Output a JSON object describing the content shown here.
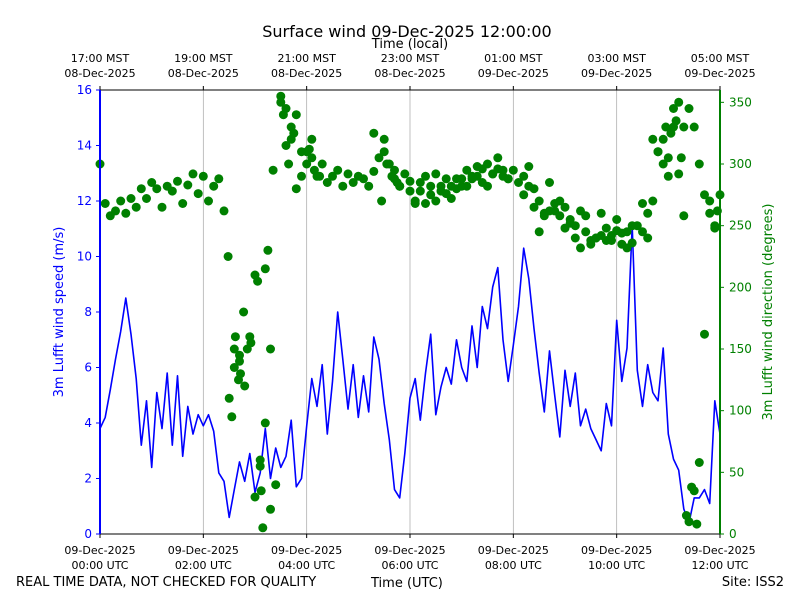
{
  "chart_data": {
    "type": "line",
    "title": "Surface wind 09-Dec-2025 12:00:00",
    "top_axis_label": "Time (local)",
    "xlabel": "Time (UTC)",
    "ylabel_left": "3m Lufft wind speed (m/s)",
    "ylabel_right": "3m Lufft wind direction (degrees)",
    "x_range_hours": [
      0,
      12
    ],
    "ylim_left": [
      0,
      16
    ],
    "ylim_right": [
      0,
      360
    ],
    "left_ticks": [
      0,
      2,
      4,
      6,
      8,
      10,
      12,
      14,
      16
    ],
    "right_ticks": [
      0,
      50,
      100,
      150,
      200,
      250,
      300,
      350
    ],
    "bottom_ticks": [
      {
        "h": 0,
        "line1": "09-Dec-2025",
        "line2": "00:00 UTC"
      },
      {
        "h": 2,
        "line1": "09-Dec-2025",
        "line2": "02:00 UTC"
      },
      {
        "h": 4,
        "line1": "09-Dec-2025",
        "line2": "04:00 UTC"
      },
      {
        "h": 6,
        "line1": "09-Dec-2025",
        "line2": "06:00 UTC"
      },
      {
        "h": 8,
        "line1": "09-Dec-2025",
        "line2": "08:00 UTC"
      },
      {
        "h": 10,
        "line1": "09-Dec-2025",
        "line2": "10:00 UTC"
      },
      {
        "h": 12,
        "line1": "09-Dec-2025",
        "line2": "12:00 UTC"
      }
    ],
    "top_ticks": [
      {
        "h": 0,
        "line1": "17:00 MST",
        "line2": "08-Dec-2025"
      },
      {
        "h": 2,
        "line1": "19:00 MST",
        "line2": "08-Dec-2025"
      },
      {
        "h": 4,
        "line1": "21:00 MST",
        "line2": "08-Dec-2025"
      },
      {
        "h": 6,
        "line1": "23:00 MST",
        "line2": "08-Dec-2025"
      },
      {
        "h": 8,
        "line1": "01:00 MST",
        "line2": "09-Dec-2025"
      },
      {
        "h": 10,
        "line1": "03:00 MST",
        "line2": "09-Dec-2025"
      },
      {
        "h": 12,
        "line1": "05:00 MST",
        "line2": "09-Dec-2025"
      }
    ],
    "grid": "vertical",
    "series": [
      {
        "name": "3m Lufft wind speed",
        "axis": "left",
        "style": "line",
        "color": "#0000ff",
        "x_hours": [
          0.0,
          0.1,
          0.2,
          0.3,
          0.4,
          0.5,
          0.6,
          0.7,
          0.8,
          0.9,
          1.0,
          1.1,
          1.2,
          1.3,
          1.4,
          1.5,
          1.6,
          1.7,
          1.8,
          1.9,
          2.0,
          2.1,
          2.2,
          2.3,
          2.4,
          2.5,
          2.6,
          2.7,
          2.8,
          2.9,
          3.0,
          3.1,
          3.2,
          3.3,
          3.4,
          3.5,
          3.6,
          3.7,
          3.8,
          3.9,
          4.0,
          4.1,
          4.2,
          4.3,
          4.4,
          4.5,
          4.6,
          4.7,
          4.8,
          4.9,
          5.0,
          5.1,
          5.2,
          5.3,
          5.4,
          5.5,
          5.6,
          5.7,
          5.8,
          5.9,
          6.0,
          6.1,
          6.2,
          6.3,
          6.4,
          6.5,
          6.6,
          6.7,
          6.8,
          6.9,
          7.0,
          7.1,
          7.2,
          7.3,
          7.4,
          7.5,
          7.6,
          7.7,
          7.8,
          7.9,
          8.0,
          8.1,
          8.2,
          8.3,
          8.4,
          8.5,
          8.6,
          8.7,
          8.8,
          8.9,
          9.0,
          9.1,
          9.2,
          9.3,
          9.4,
          9.5,
          9.6,
          9.7,
          9.8,
          9.9,
          10.0,
          10.1,
          10.2,
          10.3,
          10.4,
          10.5,
          10.6,
          10.7,
          10.8,
          10.9,
          11.0,
          11.1,
          11.2,
          11.3,
          11.4,
          11.5,
          11.6,
          11.7,
          11.8,
          11.9,
          12.0
        ],
        "values": [
          3.8,
          4.2,
          5.2,
          6.3,
          7.3,
          8.5,
          7.2,
          5.6,
          3.2,
          4.8,
          2.4,
          5.1,
          3.8,
          5.8,
          3.2,
          5.7,
          2.8,
          4.6,
          3.6,
          4.3,
          3.9,
          4.3,
          3.7,
          2.2,
          1.9,
          0.6,
          1.6,
          2.6,
          1.9,
          2.9,
          1.5,
          2.2,
          3.8,
          2.0,
          3.1,
          2.4,
          2.8,
          4.1,
          1.7,
          2.0,
          3.9,
          5.6,
          4.6,
          6.1,
          3.6,
          5.5,
          8.0,
          6.3,
          4.5,
          6.1,
          4.2,
          5.7,
          4.4,
          7.1,
          6.3,
          4.7,
          3.4,
          1.6,
          1.3,
          2.9,
          4.9,
          5.6,
          4.1,
          5.8,
          7.2,
          4.3,
          5.3,
          6.0,
          5.4,
          7.0,
          6.0,
          5.5,
          7.5,
          6.0,
          8.2,
          7.4,
          8.9,
          9.6,
          7.0,
          5.5,
          6.8,
          8.2,
          10.3,
          9.2,
          7.4,
          5.8,
          4.4,
          6.6,
          5.0,
          3.5,
          5.9,
          4.6,
          5.8,
          3.9,
          4.5,
          3.8,
          3.4,
          3.0,
          4.7,
          3.9,
          7.7,
          5.5,
          6.7,
          11.1,
          5.9,
          4.6,
          6.1,
          5.1,
          4.8,
          6.7,
          3.6,
          2.7,
          2.3,
          0.9,
          0.4,
          1.3,
          1.3,
          1.6,
          1.1,
          4.8,
          3.6
        ]
      },
      {
        "name": "3m Lufft wind direction",
        "axis": "right",
        "style": "markers",
        "color": "#008000",
        "x_hours": [
          0.0,
          0.1,
          0.2,
          0.3,
          0.4,
          0.5,
          0.6,
          0.7,
          0.8,
          0.9,
          1.0,
          1.1,
          1.2,
          1.3,
          1.4,
          1.5,
          1.6,
          1.7,
          1.8,
          1.9,
          2.0,
          2.1,
          2.2,
          2.3,
          2.4,
          2.5,
          2.6,
          2.7,
          2.8,
          2.9,
          3.0,
          3.1,
          3.2,
          3.3,
          3.4,
          3.5,
          3.6,
          3.7,
          3.8,
          3.9,
          4.0,
          4.1,
          4.2,
          4.3,
          4.4,
          4.5,
          4.6,
          4.7,
          4.8,
          4.9,
          5.0,
          5.1,
          5.2,
          5.3,
          5.4,
          5.5,
          5.6,
          5.7,
          5.8,
          5.9,
          6.0,
          6.1,
          6.2,
          6.3,
          6.4,
          6.5,
          6.6,
          6.7,
          6.8,
          6.9,
          7.0,
          7.1,
          7.2,
          7.3,
          7.4,
          7.5,
          7.6,
          7.7,
          7.8,
          7.9,
          8.0,
          8.1,
          8.2,
          8.3,
          8.4,
          8.5,
          8.6,
          8.7,
          8.8,
          8.9,
          9.0,
          9.1,
          9.2,
          9.3,
          9.4,
          9.5,
          9.6,
          9.7,
          9.8,
          9.9,
          10.0,
          10.1,
          10.2,
          10.3,
          10.4,
          10.5,
          10.6,
          10.7,
          10.8,
          10.9,
          11.0,
          11.1,
          11.2,
          11.3,
          11.4,
          11.5,
          11.6,
          11.7,
          11.8,
          11.9,
          12.0
        ],
        "values": [
          300,
          268,
          258,
          262,
          270,
          260,
          272,
          265,
          280,
          272,
          285,
          280,
          265,
          282,
          278,
          286,
          268,
          283,
          292,
          276,
          290,
          270,
          282,
          288,
          262,
          110,
          150,
          140,
          120,
          160,
          30,
          55,
          90,
          150,
          40,
          350,
          315,
          330,
          340,
          290,
          310,
          320,
          290,
          300,
          285,
          290,
          295,
          282,
          292,
          285,
          290,
          288,
          282,
          294,
          305,
          320,
          300,
          288,
          282,
          292,
          286,
          268,
          278,
          268,
          282,
          270,
          278,
          276,
          282,
          288,
          288,
          282,
          288,
          290,
          296,
          282,
          292,
          296,
          290,
          288,
          295,
          285,
          290,
          298,
          280,
          270,
          260,
          262,
          268,
          258,
          248,
          252,
          240,
          232,
          245,
          238,
          240,
          242,
          248,
          238,
          246,
          244,
          232,
          236,
          250,
          245,
          240,
          270,
          310,
          320,
          305,
          330,
          292,
          258,
          345,
          330,
          300,
          275,
          270,
          248,
          275
        ]
      },
      {
        "name": "3m Lufft wind direction (extra)",
        "axis": "right",
        "style": "markers",
        "color": "#008000",
        "x_hours": [
          2.48,
          2.55,
          2.6,
          2.62,
          2.68,
          2.7,
          2.72,
          2.78,
          2.85,
          2.92,
          3.0,
          3.05,
          3.1,
          3.12,
          3.15,
          3.2,
          3.25,
          3.3,
          3.35,
          3.5,
          3.55,
          3.6,
          3.65,
          3.7,
          3.75,
          3.8,
          3.9,
          4.0,
          4.05,
          4.1,
          4.15,
          4.25,
          5.3,
          5.45,
          5.5,
          5.55,
          5.65,
          5.7,
          5.75,
          5.8,
          6.0,
          6.1,
          6.2,
          6.3,
          6.4,
          6.5,
          6.6,
          6.7,
          6.8,
          6.9,
          7.0,
          7.1,
          7.2,
          7.3,
          7.4,
          7.5,
          7.6,
          7.7,
          7.8,
          7.9,
          8.2,
          8.3,
          8.4,
          8.5,
          8.6,
          8.7,
          8.8,
          8.9,
          9.0,
          9.1,
          9.2,
          9.3,
          9.4,
          9.5,
          9.6,
          9.7,
          9.8,
          9.9,
          10.0,
          10.1,
          10.2,
          10.3,
          10.5,
          10.6,
          10.7,
          10.8,
          10.9,
          10.95,
          11.0,
          11.05,
          11.1,
          11.15,
          11.2,
          11.25,
          11.3,
          11.35,
          11.4,
          11.45,
          11.5,
          11.55,
          11.6,
          11.7,
          11.8,
          11.9,
          11.95
        ],
        "values": [
          225,
          95,
          135,
          160,
          125,
          145,
          130,
          180,
          150,
          155,
          210,
          205,
          60,
          35,
          5,
          215,
          230,
          20,
          295,
          355,
          340,
          345,
          300,
          320,
          325,
          280,
          310,
          300,
          312,
          305,
          295,
          290,
          325,
          270,
          310,
          300,
          290,
          295,
          285,
          282,
          278,
          270,
          285,
          290,
          275,
          292,
          282,
          288,
          272,
          280,
          282,
          295,
          290,
          298,
          285,
          300,
          292,
          305,
          295,
          288,
          275,
          282,
          265,
          245,
          258,
          285,
          262,
          270,
          265,
          255,
          250,
          262,
          258,
          235,
          240,
          260,
          238,
          242,
          255,
          235,
          245,
          250,
          268,
          260,
          320,
          310,
          300,
          330,
          290,
          325,
          345,
          335,
          350,
          305,
          330,
          15,
          10,
          38,
          35,
          8,
          58,
          162,
          260,
          250,
          262
        ]
      }
    ]
  },
  "footer": {
    "left": "REAL TIME DATA, NOT CHECKED FOR QUALITY",
    "center": "Time (UTC)",
    "right": "Site: ISS2"
  }
}
